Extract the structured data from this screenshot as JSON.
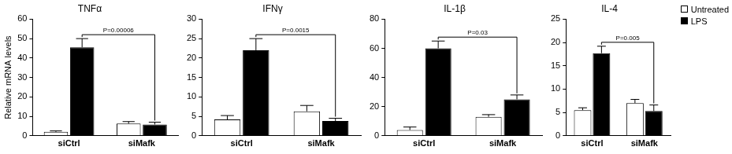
{
  "chart_data": [
    {
      "type": "bar",
      "title": "TNFα",
      "y_label": "Relative mRNA levels",
      "categories": [
        "siCtrl",
        "siMafk"
      ],
      "series": [
        {
          "name": "Untreated",
          "color": "#ffffff",
          "values": [
            2,
            6.3
          ],
          "errors": [
            0.5,
            1
          ]
        },
        {
          "name": "LPS",
          "color": "#000000",
          "values": [
            45.5,
            5.8
          ],
          "errors": [
            4.5,
            1.2
          ]
        }
      ],
      "ylim": [
        0,
        60
      ],
      "yticks": [
        0,
        10,
        20,
        30,
        40,
        50,
        60
      ],
      "grid": false,
      "annotations": [
        {
          "text": "P=0.00006",
          "between": [
            "siCtrl",
            "siMafk"
          ],
          "series": "LPS"
        }
      ]
    },
    {
      "type": "bar",
      "title": "IFNγ",
      "categories": [
        "siCtrl",
        "siMafk"
      ],
      "series": [
        {
          "name": "Untreated",
          "color": "#ffffff",
          "values": [
            4.2,
            6.3
          ],
          "errors": [
            1,
            1.5
          ]
        },
        {
          "name": "LPS",
          "color": "#000000",
          "values": [
            22,
            3.8
          ],
          "errors": [
            3,
            0.7
          ]
        }
      ],
      "ylim": [
        0,
        30
      ],
      "yticks": [
        0,
        5,
        10,
        15,
        20,
        25,
        30
      ],
      "grid": false,
      "annotations": [
        {
          "text": "P=0.0015",
          "between": [
            "siCtrl",
            "siMafk"
          ],
          "series": "LPS"
        }
      ]
    },
    {
      "type": "bar",
      "title": "IL-1β",
      "categories": [
        "siCtrl",
        "siMafk"
      ],
      "series": [
        {
          "name": "Untreated",
          "color": "#ffffff",
          "values": [
            4,
            13
          ],
          "errors": [
            2,
            1.5
          ]
        },
        {
          "name": "LPS",
          "color": "#000000",
          "values": [
            60,
            25
          ],
          "errors": [
            5,
            3
          ]
        }
      ],
      "ylim": [
        0,
        80
      ],
      "yticks": [
        0,
        20,
        40,
        60,
        80
      ],
      "grid": false,
      "annotations": [
        {
          "text": "P=0.03",
          "between": [
            "siCtrl",
            "siMafk"
          ],
          "series": "LPS"
        }
      ]
    },
    {
      "type": "bar",
      "title": "IL-4",
      "categories": [
        "siCtrl",
        "siMafk"
      ],
      "series": [
        {
          "name": "Untreated",
          "color": "#ffffff",
          "values": [
            5.5,
            7
          ],
          "errors": [
            0.5,
            0.8
          ]
        },
        {
          "name": "LPS",
          "color": "#000000",
          "values": [
            17.7,
            5.3
          ],
          "errors": [
            1.5,
            1.3
          ]
        }
      ],
      "ylim": [
        0,
        25
      ],
      "yticks": [
        0,
        5,
        10,
        15,
        20,
        25
      ],
      "grid": false,
      "legend": "top-right",
      "annotations": [
        {
          "text": "P=0.005",
          "between": [
            "siCtrl",
            "siMafk"
          ],
          "series": "LPS"
        }
      ]
    }
  ]
}
